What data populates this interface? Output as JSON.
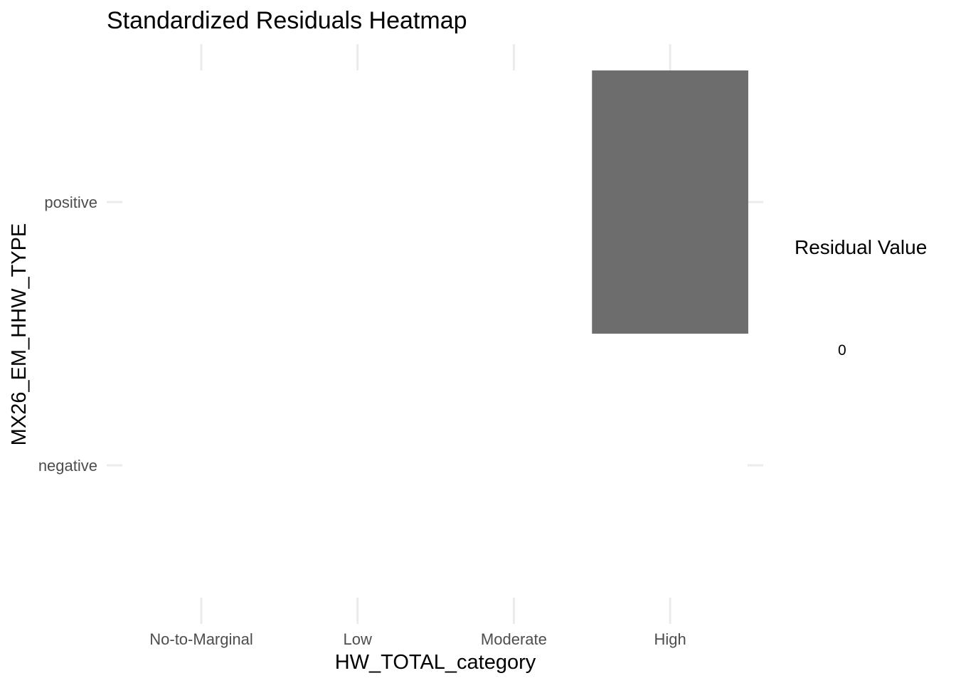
{
  "chart_data": {
    "type": "heatmap",
    "title": "Standardized Residuals Heatmap",
    "xlabel": "HW_TOTAL_category",
    "ylabel": "MX26_EM_HHW_TYPE",
    "x_categories": [
      "No-to-Marginal",
      "Low",
      "Moderate",
      "High"
    ],
    "y_categories": [
      "negative",
      "positive"
    ],
    "cells": [
      {
        "x": "High",
        "y": "positive",
        "value": 0
      }
    ],
    "cell_color": "#6d6d6d",
    "grid": true,
    "legend": {
      "title": "Residual Value",
      "labels": [
        "0"
      ],
      "placement": "right"
    }
  }
}
